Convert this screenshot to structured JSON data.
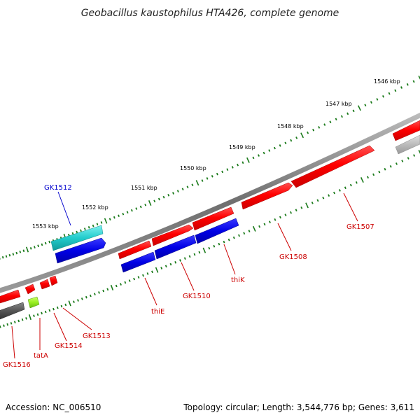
{
  "title": "Geobacillus kaustophilus HTA426, complete genome",
  "footer": {
    "accession": "Accession: NC_006510",
    "topology": "Topology: circular; Length: 3,544,776 bp; Genes: 3,611"
  },
  "colors": {
    "backbone": "#7a7a7a",
    "tick": "#1a7a1a",
    "forward_gene": "#ff0000",
    "reverse_gene": "#0000e6",
    "cyan_gene": "#22cccc",
    "dark_gray_gene": "#555555",
    "light_gray_gene": "#bbbbbb",
    "lime_gene": "#99ee22",
    "label_red": "#cc0000",
    "label_blue": "#0000cc"
  },
  "scale_labels": [
    {
      "id": "kbp-1546",
      "text": "1546 kbp"
    },
    {
      "id": "kbp-1547",
      "text": "1547 kbp"
    },
    {
      "id": "kbp-1548",
      "text": "1548 kbp"
    },
    {
      "id": "kbp-1549",
      "text": "1549 kbp"
    },
    {
      "id": "kbp-1550",
      "text": "1550 kbp"
    },
    {
      "id": "kbp-1551",
      "text": "1551 kbp"
    },
    {
      "id": "kbp-1552",
      "text": "1552 kbp"
    },
    {
      "id": "kbp-1553",
      "text": "1553 kbp"
    }
  ],
  "gene_labels": [
    {
      "id": "gk1512",
      "text": "GK1512"
    },
    {
      "id": "gk1507",
      "text": "GK1507"
    },
    {
      "id": "gk1508",
      "text": "GK1508"
    },
    {
      "id": "thik",
      "text": "thiK"
    },
    {
      "id": "gk1510",
      "text": "GK1510"
    },
    {
      "id": "thie",
      "text": "thiE"
    },
    {
      "id": "gk1513",
      "text": "GK1513"
    },
    {
      "id": "gk1514",
      "text": "GK1514"
    },
    {
      "id": "tata",
      "text": "tatA"
    },
    {
      "id": "gk1516",
      "text": "GK1516"
    }
  ]
}
